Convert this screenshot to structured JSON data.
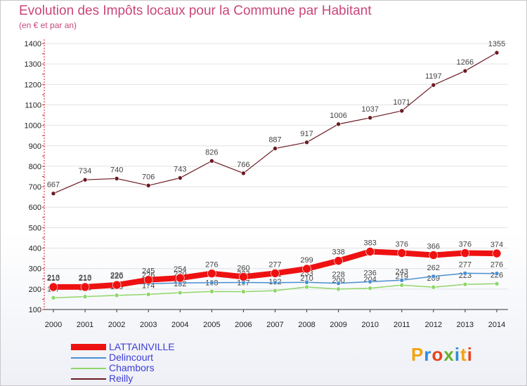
{
  "title": "Evolution des Impôts locaux pour la Commune par Habitant",
  "subtitle": "(en € et par an)",
  "logo": {
    "text": "Proxiti",
    "colors": [
      "#f2a30f",
      "#2e8bd8",
      "#e8421b",
      "#65b32e",
      "#2e8bd8",
      "#f2a30f",
      "#e8421b"
    ]
  },
  "chart_data": {
    "type": "line",
    "x": [
      "2000",
      "2001",
      "2002",
      "2003",
      "2004",
      "2005",
      "2006",
      "2007",
      "2008",
      "2009",
      "2010",
      "2011",
      "2012",
      "2013",
      "2014"
    ],
    "ylim": [
      100,
      1400
    ],
    "yticks": [
      100,
      200,
      300,
      400,
      500,
      600,
      700,
      800,
      900,
      1000,
      1100,
      1200,
      1300,
      1400
    ],
    "grid": "horizontal",
    "legend_position": "bottom-left",
    "series": [
      {
        "name": "Reilly",
        "color": "#6b1a22",
        "values": [
          667,
          734,
          740,
          706,
          743,
          826,
          766,
          887,
          917,
          1006,
          1037,
          1071,
          1197,
          1266,
          1355
        ]
      },
      {
        "name": "Chambors",
        "color": "#8fd66a",
        "values": [
          157,
          163,
          169,
          174,
          182,
          188,
          187,
          192,
          210,
          200,
          204,
          219,
          209,
          223,
          226
        ]
      },
      {
        "name": "Delincourt",
        "color": "#4a8fd0",
        "values": [
          213,
          213,
          226,
          226,
          230,
          231,
          232,
          231,
          233,
          228,
          236,
          243,
          262,
          277,
          276
        ]
      },
      {
        "name": "LATTAINVILLE",
        "color": "#ee1111",
        "values": [
          210,
          210,
          220,
          245,
          254,
          276,
          260,
          277,
          299,
          338,
          383,
          376,
          366,
          376,
          374
        ]
      }
    ],
    "legend_order": [
      "LATTAINVILLE",
      "Delincourt",
      "Chambors",
      "Reilly"
    ]
  }
}
